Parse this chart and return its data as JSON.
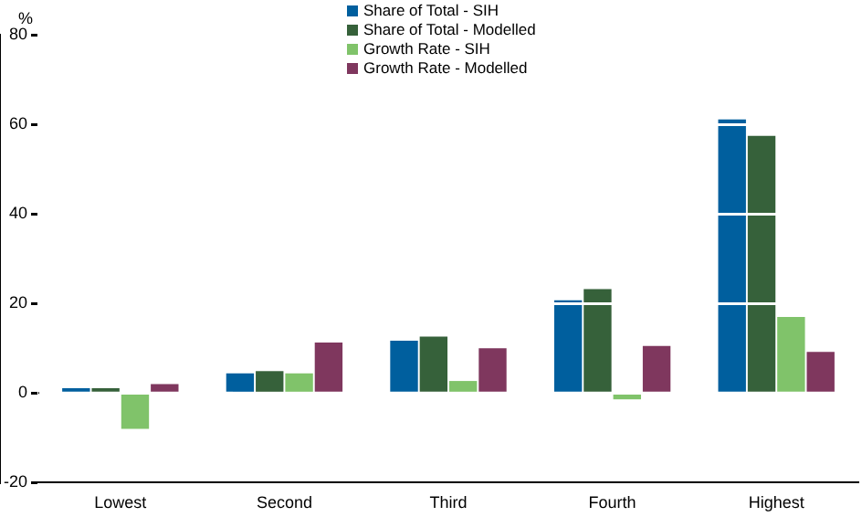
{
  "chart_data": {
    "type": "bar",
    "ylabel": "%",
    "categories": [
      "Lowest",
      "Second",
      "Third",
      "Fourth",
      "Highest"
    ],
    "series": [
      {
        "name": "Share of Total - SIH",
        "color": "#005f9e",
        "values": [
          1.1,
          4.4,
          11.7,
          20.7,
          61.1
        ]
      },
      {
        "name": "Share of Total - Modelled",
        "color": "#36613a",
        "values": [
          1.1,
          4.9,
          12.6,
          23.2,
          57.4
        ]
      },
      {
        "name": "Growth Rate - SIH",
        "color": "#80c36a",
        "values": [
          -8,
          4.4,
          2.7,
          -1.4,
          17
        ]
      },
      {
        "name": "Growth Rate - Modelled",
        "color": "#7f375e",
        "values": [
          2,
          11.3,
          10,
          10.5,
          9.2
        ]
      }
    ],
    "ylim": [
      -20,
      80
    ],
    "yticks": [
      -20,
      0,
      20,
      40,
      60,
      80
    ],
    "grid": "y",
    "legend": "top"
  }
}
